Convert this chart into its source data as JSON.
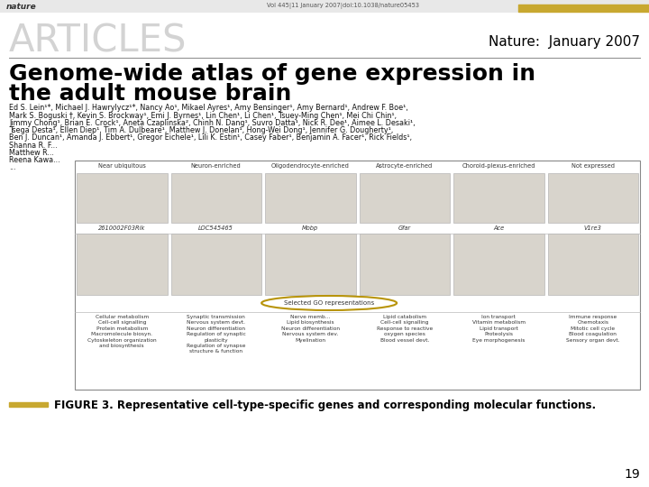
{
  "bg_color": "#ffffff",
  "header_bar_color": "#c8a830",
  "header_text": "nature",
  "header_doi": "Vol 445|11 January 2007|doi:10.1038/nature05453",
  "articles_text": "ARTICLES",
  "articles_color": "#cccccc",
  "nature_date": "Nature:  January 2007",
  "title_line1": "Genome-wide atlas of gene expression in",
  "title_line2": "the adult mouse brain",
  "author_lines": [
    "Ed S. Lein¹*, Michael J. Hawrylycz¹*, Nancy Ao¹, Mikael Ayres¹, Amy Bensinger¹, Amy Bernard¹, Andrew F. Boe¹,",
    "Mark S. Boguski †, Kevin S. Brockway¹, Emi J. Byrnes¹, Lin Chen¹, Li Chen¹, Tsuey-Ming Chen¹, Mei Chi Chin¹,",
    "Jimmy Chong¹, Brian E. Crock¹, Aneta Czaplinska², Chinh N. Dang¹, Suvro Datta¹, Nick R. Dee¹, Aimee L. Desaki¹,",
    "Tsega Desta¹, Ellen Diep¹, Tim A. Dulbeare¹, Matthew J. Donelan¹, Hong-Wei Dong¹, Jennifer G. Dougherty¹,",
    "Ben J. Duncan¹, Amanda J. Ebbert¹, Gregor Eichele¹, Lili K. Estin¹, Casey Faber¹, Benjamin A. Facer¹, Rick Fields¹,",
    "Shanna R. F...",
    "Matthew R...",
    "Reena Kawa...",
    "..."
  ],
  "col_labels": [
    "Near ubiquitous",
    "Neuron-enriched",
    "Oligodendrocyte-enriched",
    "Astrocyte-enriched",
    "Choroid-plexus-enriched",
    "Not expressed"
  ],
  "gene_names": [
    "2610002F03Rik",
    "LOC545465",
    "Mobp",
    "Gfar",
    "Ace",
    "V1re3"
  ],
  "go_columns": [
    "Cellular metabolism\nCell-cell signalling\nProtein metabolism\nMacromolecule biosyn.\nCytoskeleton organization\nand biosynthesis",
    "Synaptic transmission\nNervous system devt.\nNeuron differentiation\nRegulation of synaptic\nplasticity\nRegulation of synapse\nstructure & function",
    "Nerve memb...\nLipid biosynthesis\nNeuron differentiation\nNervous system dev.\nMyelination",
    "Lipid catabolism\nCell-cell signalling\nResponse to reactive\noxygen species\nBlood vessel devt.",
    "Ion transport\nVitamin metabolism\nLipid transport\nProteolysis\nEye morphogenesis",
    "Immune response\nChemotaxis\nMitotic cell cycle\nBlood coagulation\nSensory organ devt."
  ],
  "figure_caption": "FIGURE 3. Representative cell-type-specific genes and corresponding molecular functions.",
  "page_number": "19",
  "caption_bar_color": "#c8a830"
}
